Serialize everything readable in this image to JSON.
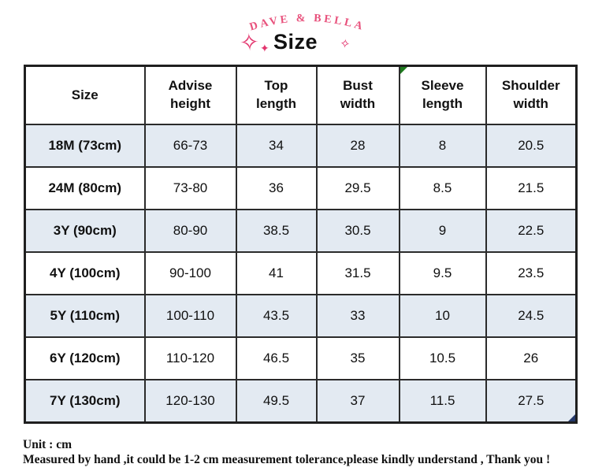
{
  "header": {
    "brand": "DAVE  &  BELLA",
    "title": "Size",
    "sparkle_big": "✧",
    "sparkle_small": "✦",
    "sparkle_right": "✧"
  },
  "chart_data": {
    "type": "table",
    "title": "Size",
    "brand": "DAVE & BELLA",
    "columns": [
      "Size",
      "Advise height",
      "Top length",
      "Bust width",
      "Sleeve length",
      "Shoulder width"
    ],
    "rows": [
      [
        "18M (73cm)",
        "66-73",
        "34",
        "28",
        "8",
        "20.5"
      ],
      [
        "24M (80cm)",
        "73-80",
        "36",
        "29.5",
        "8.5",
        "21.5"
      ],
      [
        "3Y (90cm)",
        "80-90",
        "38.5",
        "30.5",
        "9",
        "22.5"
      ],
      [
        "4Y (100cm)",
        "90-100",
        "41",
        "31.5",
        "9.5",
        "23.5"
      ],
      [
        "5Y (110cm)",
        "100-110",
        "43.5",
        "33",
        "10",
        "24.5"
      ],
      [
        "6Y (120cm)",
        "110-120",
        "46.5",
        "35",
        "10.5",
        "26"
      ],
      [
        "7Y (130cm)",
        "120-130",
        "49.5",
        "37",
        "11.5",
        "27.5"
      ]
    ],
    "unit": "cm",
    "layout_hints": {
      "striped_rows": "odd data rows light blue",
      "comment_marker_column": "Sleeve length",
      "selection_marker_cell": "last row, last column"
    }
  },
  "footer": {
    "unit_line": "Unit : cm",
    "note_line": "Measured by hand ,it could be 1-2 cm measurement tolerance,please kindly understand , Thank you !"
  },
  "colors": {
    "brand_pink": "#e8517c",
    "sparkle_pink": "#e3356e",
    "row_stripe_blue": "#e3eaf2",
    "border_dark": "#2b2b2b",
    "comment_marker_green": "#1d7a1d",
    "selection_marker_blue": "#24386b"
  }
}
